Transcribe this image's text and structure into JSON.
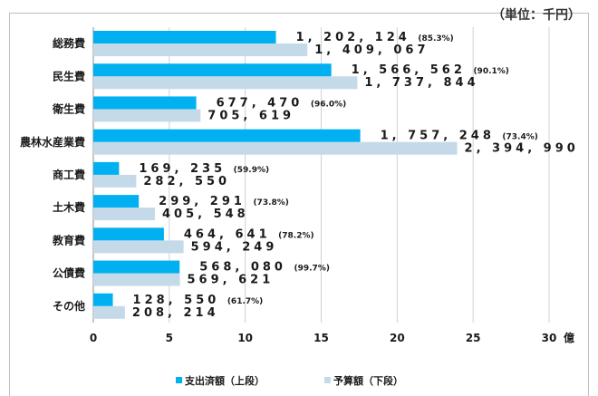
{
  "unit_label": "（単位：千円）",
  "chart_data": {
    "type": "bar",
    "orientation": "horizontal",
    "x_unit": "億",
    "xlim": [
      0,
      30
    ],
    "xticks": [
      0,
      5,
      10,
      15,
      20,
      25,
      30
    ],
    "grid": true,
    "legend_position": "bottom",
    "categories": [
      "総務費",
      "民生費",
      "衛生費",
      "農林水産業費",
      "商工費",
      "土木費",
      "教育費",
      "公債費",
      "その他"
    ],
    "series": [
      {
        "name": "支出済額（上段）",
        "color": "#00b0f0",
        "values": [
          12.02124,
          15.66562,
          6.7747,
          17.57248,
          1.69235,
          2.99291,
          4.64641,
          5.6808,
          1.2855
        ],
        "labels": [
          "1, 202, 124",
          "1, 566, 562",
          "677, 470",
          "1, 757, 248",
          "169, 235",
          "299, 291",
          "464, 641",
          "568, 080",
          "128, 550"
        ],
        "pct_labels": [
          "(85.3%)",
          "(90.1%)",
          "(96.0%)",
          "(73.4%)",
          "(59.9%)",
          "(73.8%)",
          "(78.2%)",
          "(99.7%)",
          "(61.7%)"
        ]
      },
      {
        "name": "予算額（下段）",
        "color": "#c5dae8",
        "values": [
          14.09067,
          17.37844,
          7.05619,
          23.9499,
          2.8255,
          4.05548,
          5.94249,
          5.69621,
          2.08214
        ],
        "labels": [
          "1, 409, 067",
          "1, 737, 844",
          "705, 619",
          "2, 394, 990",
          "282, 550",
          "405, 548",
          "594, 249",
          "569, 621",
          "208, 214"
        ]
      }
    ]
  }
}
